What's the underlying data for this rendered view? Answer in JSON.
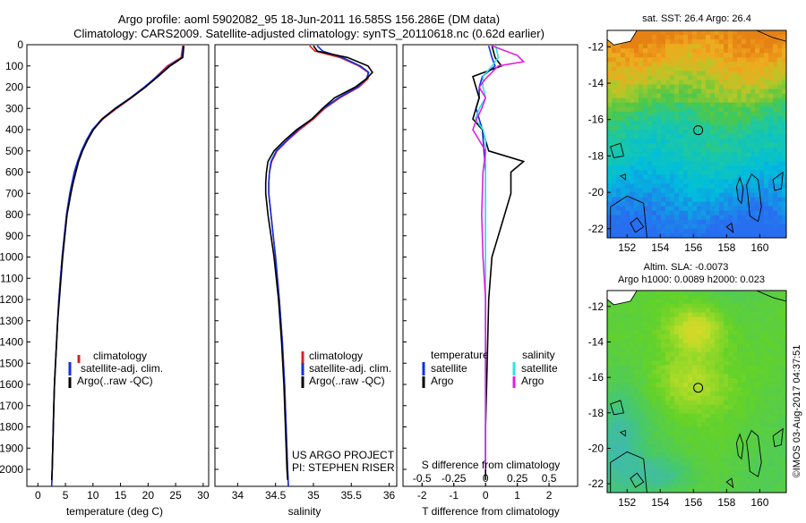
{
  "header": {
    "line1": "Argo profile: aoml 5902082_95 18-Jun-2011 16.585S 156.286E (DM data)",
    "line2": "Climatology: CARS2009. Satellite-adjusted climatology: synTS_20110618.nc (0.62d earlier)"
  },
  "colors": {
    "clim": "#e02020",
    "sat": "#1030e0",
    "argo": "#000000",
    "sal_sat": "#30e0e8",
    "sal_argo": "#e020e0"
  },
  "side_text": "©IMOS 03-Aug-2017 04:37:51",
  "chart_data": [
    {
      "type": "line",
      "name": "temperature",
      "xlabel": "temperature (deg C)",
      "xlim": [
        -2,
        31
      ],
      "ylim": [
        2080,
        0
      ],
      "xticks": [
        "0",
        "5",
        "10",
        "15",
        "20",
        "25",
        "30"
      ],
      "yticks": [
        "0",
        "100",
        "200",
        "300",
        "400",
        "500",
        "600",
        "700",
        "800",
        "900",
        "1000",
        "1100",
        "1200",
        "1300",
        "1400",
        "1500",
        "1600",
        "1700",
        "1800",
        "1900",
        "2000"
      ],
      "legend": [
        "climatology",
        "satellite-adj. clim.",
        "Argo(..raw -QC)"
      ],
      "series": [
        {
          "name": "climatology",
          "depth": [
            5,
            60,
            100,
            150,
            200,
            250,
            300,
            350,
            400,
            450,
            500,
            550,
            600,
            650,
            700,
            800,
            900,
            1000,
            1100,
            1200,
            1300,
            1400,
            1500,
            1600,
            1700,
            1800,
            1900,
            2000,
            2080
          ],
          "values": [
            26.3,
            26.0,
            23.5,
            21.5,
            19.5,
            17.0,
            14.3,
            11.8,
            10.0,
            8.9,
            8.0,
            7.3,
            6.7,
            6.2,
            5.8,
            5.2,
            4.8,
            4.4,
            4.1,
            3.8,
            3.6,
            3.4,
            3.2,
            3.0,
            2.9,
            2.8,
            2.7,
            2.6,
            2.5
          ]
        },
        {
          "name": "satellite-adj. clim.",
          "depth": [
            5,
            60,
            100,
            150,
            200,
            250,
            300,
            350,
            400,
            450,
            500,
            550,
            600,
            650,
            700,
            800,
            900,
            1000,
            1100,
            1200,
            1300,
            1400,
            1500,
            1600,
            1700,
            1800,
            1900,
            2000,
            2080
          ],
          "values": [
            26.4,
            26.2,
            23.8,
            21.6,
            19.3,
            16.8,
            14.0,
            11.6,
            9.9,
            8.8,
            7.9,
            7.2,
            6.6,
            6.2,
            5.8,
            5.2,
            4.8,
            4.4,
            4.1,
            3.8,
            3.6,
            3.4,
            3.2,
            3.0,
            2.9,
            2.8,
            2.7,
            2.6,
            2.5
          ]
        },
        {
          "name": "Argo(..raw -QC)",
          "depth": [
            5,
            60,
            100,
            150,
            200,
            250,
            300,
            350,
            400,
            450,
            500,
            550,
            600,
            650,
            700,
            800,
            900,
            1000,
            1100,
            1200,
            1300,
            1400,
            1500,
            1600,
            1700,
            1800,
            1900,
            2000,
            2050
          ],
          "values": [
            26.5,
            26.3,
            24.0,
            21.8,
            19.5,
            16.9,
            14.1,
            11.7,
            10.1,
            9.0,
            8.1,
            7.4,
            6.9,
            6.4,
            6.0,
            5.3,
            4.9,
            4.5,
            4.2,
            3.9,
            3.6,
            3.4,
            3.2,
            3.0,
            2.9,
            2.8,
            2.7,
            2.6,
            2.5
          ]
        }
      ]
    },
    {
      "type": "line",
      "name": "salinity",
      "xlabel": "salinity",
      "xlim": [
        33.7,
        36.1
      ],
      "ylim": [
        2080,
        0
      ],
      "xticks": [
        "34",
        "34.5",
        "35",
        "35.5",
        "36"
      ],
      "legend": [
        "climatology",
        "satellite-adj. clim.",
        "Argo(..raw -QC)"
      ],
      "annotation": [
        "US ARGO PROJECT",
        "PI: STEPHEN RISER"
      ],
      "series": [
        {
          "name": "climatology",
          "depth": [
            5,
            30,
            60,
            100,
            130,
            160,
            200,
            250,
            300,
            350,
            400,
            450,
            500,
            550,
            600,
            650,
            700,
            800,
            900,
            1000,
            1200,
            1400,
            1600,
            1800,
            2000,
            2080
          ],
          "values": [
            34.95,
            35.02,
            35.35,
            35.6,
            35.72,
            35.72,
            35.6,
            35.35,
            35.15,
            35.0,
            34.82,
            34.66,
            34.52,
            34.45,
            34.42,
            34.41,
            34.41,
            34.44,
            34.47,
            34.5,
            34.55,
            34.59,
            34.62,
            34.64,
            34.66,
            34.67
          ]
        },
        {
          "name": "satellite-adj. clim.",
          "depth": [
            5,
            30,
            60,
            100,
            130,
            160,
            200,
            250,
            300,
            350,
            400,
            450,
            500,
            550,
            600,
            650,
            700,
            800,
            900,
            1000,
            1200,
            1400,
            1600,
            1800,
            2000,
            2080
          ],
          "values": [
            35.05,
            35.12,
            35.38,
            35.62,
            35.73,
            35.7,
            35.58,
            35.33,
            35.13,
            34.98,
            34.8,
            34.65,
            34.51,
            34.44,
            34.42,
            34.41,
            34.41,
            34.44,
            34.47,
            34.5,
            34.55,
            34.59,
            34.62,
            34.64,
            34.66,
            34.67
          ]
        },
        {
          "name": "Argo(..raw -QC)",
          "depth": [
            5,
            30,
            60,
            100,
            130,
            160,
            200,
            250,
            300,
            350,
            400,
            450,
            500,
            550,
            600,
            650,
            700,
            800,
            900,
            1000,
            1200,
            1400,
            1600,
            1800,
            2000,
            2050
          ],
          "values": [
            35.0,
            35.05,
            35.45,
            35.72,
            35.78,
            35.7,
            35.55,
            35.28,
            35.12,
            34.98,
            34.78,
            34.62,
            34.48,
            34.4,
            34.38,
            34.37,
            34.37,
            34.4,
            34.44,
            34.48,
            34.54,
            34.58,
            34.61,
            34.63,
            34.65,
            34.66
          ]
        }
      ]
    },
    {
      "type": "line",
      "name": "difference",
      "xlabel_top": "S difference from climatology",
      "xlabel": "T difference from climatology",
      "t_xlim": [
        -2.6,
        2.9
      ],
      "t_xticks": [
        "-2",
        "-1",
        "0",
        "1",
        "2"
      ],
      "s_xlim": [
        -0.65,
        0.725
      ],
      "s_xticks": [
        "-0.5",
        "-0.25",
        "0",
        "0.25",
        "0.5"
      ],
      "ylim": [
        2080,
        0
      ],
      "legend": {
        "temperature": [
          "temperature",
          "satellite",
          "Argo"
        ],
        "salinity": [
          "salinity",
          "satellite",
          "Argo"
        ]
      },
      "series": [
        {
          "name": "temperature satellite",
          "kind": "T",
          "depth": [
            5,
            60,
            100,
            150,
            200,
            250,
            300,
            350,
            400,
            500,
            600,
            800,
            1000,
            1500,
            2000
          ],
          "values": [
            0.1,
            0.2,
            0.3,
            -0.1,
            -0.2,
            -0.2,
            -0.3,
            -0.2,
            -0.1,
            -0.05,
            0,
            0,
            0,
            0,
            0
          ]
        },
        {
          "name": "temperature Argo",
          "kind": "T",
          "depth": [
            5,
            60,
            100,
            150,
            200,
            250,
            300,
            350,
            400,
            500,
            550,
            600,
            700,
            800,
            900,
            1000,
            1200,
            1500,
            1800,
            2000,
            2050
          ],
          "values": [
            0.2,
            0.3,
            0.5,
            -0.4,
            -0.3,
            -0.2,
            -0.3,
            -0.4,
            -0.1,
            0.1,
            1.2,
            0.8,
            0.8,
            0.6,
            0.4,
            0.2,
            0.1,
            0.05,
            0,
            0,
            0
          ]
        },
        {
          "name": "salinity satellite",
          "kind": "S",
          "depth": [
            5,
            60,
            100,
            150,
            200,
            250,
            300,
            350,
            400,
            450,
            500,
            600,
            800,
            1000,
            1500,
            2000
          ],
          "values": [
            0.08,
            0.1,
            0.05,
            -0.02,
            -0.02,
            0,
            -0.05,
            -0.08,
            -0.02,
            0,
            0,
            0,
            0,
            0,
            0,
            0
          ]
        },
        {
          "name": "salinity Argo",
          "kind": "S",
          "depth": [
            5,
            50,
            80,
            100,
            130,
            160,
            200,
            250,
            300,
            350,
            400,
            450,
            500,
            600,
            800,
            1000,
            1200,
            1500,
            2000
          ],
          "values": [
            0.05,
            0.25,
            0.3,
            0.1,
            0.05,
            0,
            -0.05,
            0,
            -0.03,
            -0.07,
            -0.1,
            -0.05,
            0,
            -0.02,
            -0.03,
            -0.02,
            0,
            0,
            0
          ]
        }
      ]
    },
    {
      "type": "heatmap",
      "name": "sst-map",
      "title": "sat. SST: 26.4  Argo: 26.4",
      "xticks": [
        "152",
        "154",
        "156",
        "158",
        "160"
      ],
      "yticks": [
        "-12",
        "-14",
        "-16",
        "-18",
        "-20",
        "-22"
      ],
      "xlim": [
        150.8,
        161.6
      ],
      "ylim": [
        -22.5,
        -11.1
      ],
      "marker": {
        "lon": 156.286,
        "lat": -16.585
      }
    },
    {
      "type": "heatmap",
      "name": "sla-map",
      "title1": "Altim. SLA: -0.0073",
      "title2": "Argo h1000: 0.0089 h2000: 0.023",
      "xticks": [
        "152",
        "154",
        "156",
        "158",
        "160"
      ],
      "yticks": [
        "-12",
        "-14",
        "-16",
        "-18",
        "-20",
        "-22"
      ],
      "xlim": [
        150.8,
        161.6
      ],
      "ylim": [
        -22.5,
        -11.1
      ],
      "marker": {
        "lon": 156.286,
        "lat": -16.585
      }
    }
  ]
}
